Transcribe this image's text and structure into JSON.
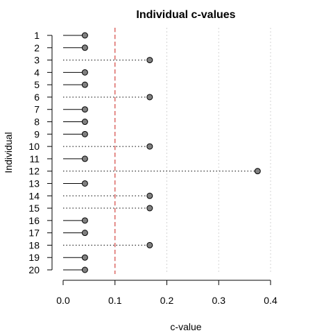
{
  "chart_data": {
    "type": "scatter",
    "title": "Individual c-values",
    "xlabel": "c-value",
    "ylabel": "Individual",
    "categories": [
      "1",
      "2",
      "3",
      "4",
      "5",
      "6",
      "7",
      "8",
      "9",
      "10",
      "11",
      "12",
      "13",
      "14",
      "15",
      "16",
      "17",
      "18",
      "19",
      "20"
    ],
    "values": [
      0.042,
      0.042,
      0.167,
      0.042,
      0.042,
      0.167,
      0.042,
      0.042,
      0.042,
      0.167,
      0.042,
      0.375,
      0.042,
      0.167,
      0.167,
      0.042,
      0.042,
      0.167,
      0.042,
      0.042
    ],
    "stem_style": [
      "solid",
      "solid",
      "dotted",
      "solid",
      "solid",
      "dotted",
      "solid",
      "solid",
      "solid",
      "dotted",
      "solid",
      "dotted",
      "solid",
      "dotted",
      "dotted",
      "solid",
      "solid",
      "dotted",
      "solid",
      "solid"
    ],
    "xlim": [
      0,
      0.4
    ],
    "xticks": [
      "0.0",
      "0.1",
      "0.2",
      "0.3",
      "0.4"
    ],
    "xtick_values": [
      0,
      0.1,
      0.2,
      0.3,
      0.4
    ],
    "threshold": 0.1,
    "threshold_color": "#d9534f",
    "point_color": "#808080",
    "grid": "vertical dotted"
  }
}
